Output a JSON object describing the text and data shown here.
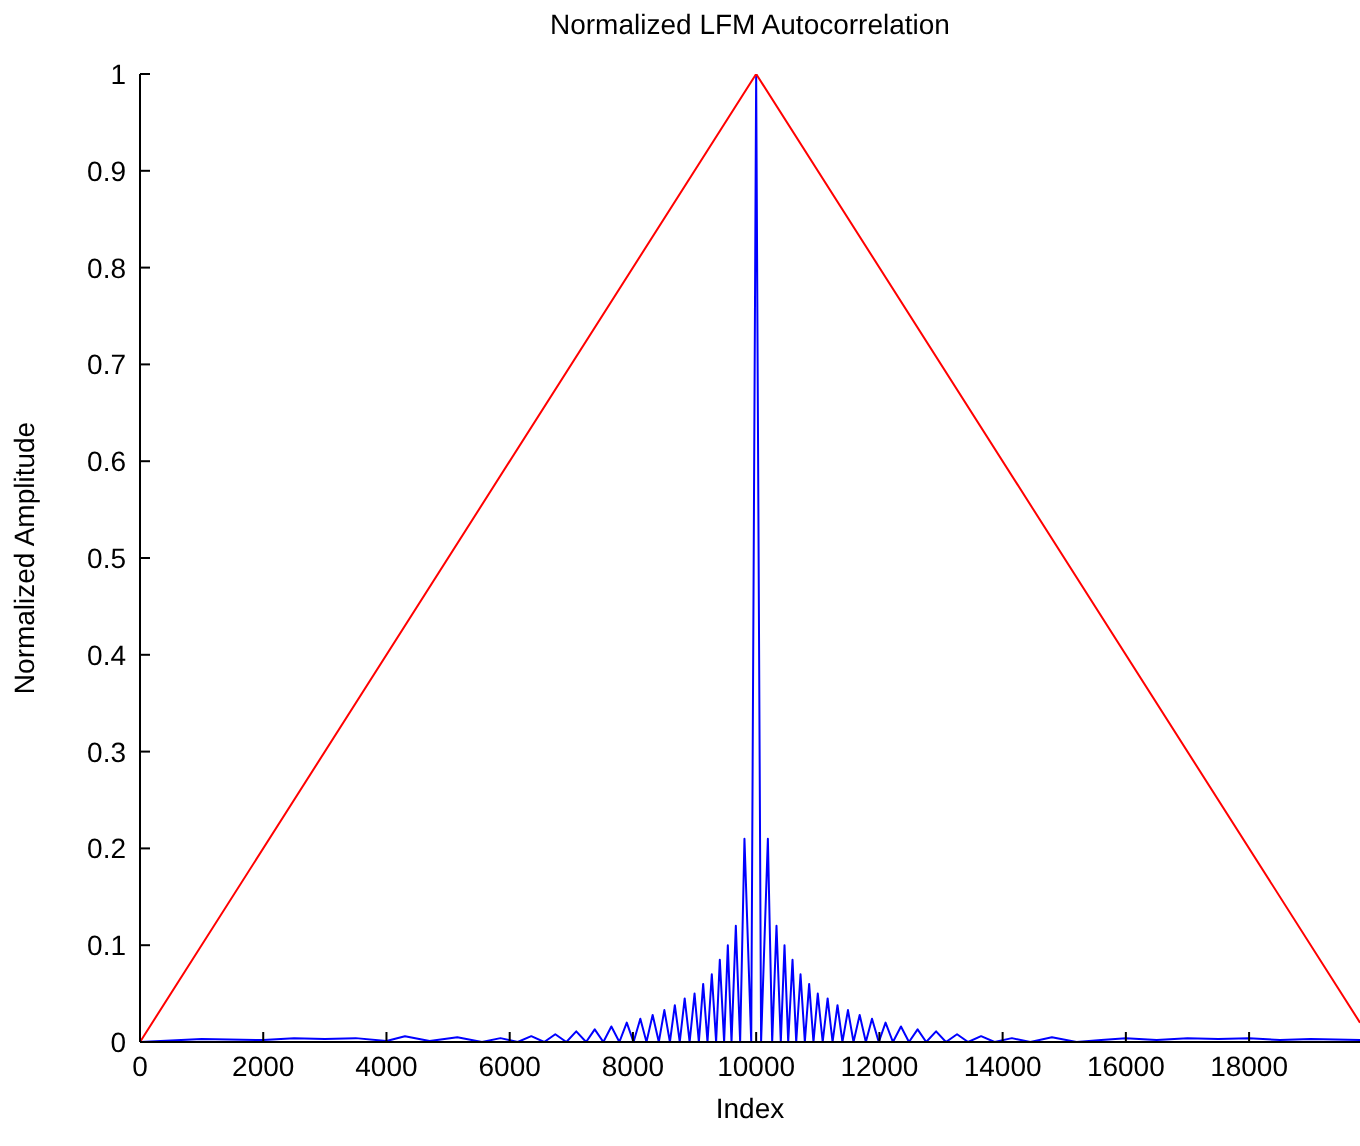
{
  "chart_data": {
    "type": "line",
    "title": "Normalized LFM Autocorrelation",
    "xlabel": "Index",
    "ylabel": "Normalized Amplitude",
    "xlim": [
      0,
      19800
    ],
    "xticks": [
      0,
      2000,
      4000,
      6000,
      8000,
      10000,
      12000,
      14000,
      16000,
      18000
    ],
    "ylim": [
      0,
      1
    ],
    "yticks": [
      0,
      0.1,
      0.2,
      0.3,
      0.4,
      0.5,
      0.6,
      0.7,
      0.8,
      0.9,
      1
    ],
    "grid": false,
    "marker": "none",
    "line_style": "solid",
    "series": [
      {
        "color": "#0000ff",
        "x": [
          0,
          1000,
          2000,
          2500,
          3000,
          3500,
          4000,
          4300,
          4700,
          5150,
          5550,
          5850,
          6130,
          6350,
          6560,
          6740,
          6920,
          7080,
          7240,
          7380,
          7520,
          7650,
          7780,
          7900,
          8010,
          8120,
          8220,
          8320,
          8420,
          8510,
          8600,
          8680,
          8760,
          8840,
          8920,
          9000,
          9070,
          9140,
          9210,
          9280,
          9350,
          9410,
          9480,
          9540,
          9600,
          9670,
          9740,
          9810,
          9920,
          10000,
          10080,
          10190,
          10260,
          10330,
          10400,
          10460,
          10520,
          10590,
          10650,
          10720,
          10790,
          10860,
          10930,
          11000,
          11080,
          11160,
          11240,
          11320,
          11400,
          11490,
          11580,
          11680,
          11780,
          11880,
          11990,
          12100,
          12220,
          12350,
          12480,
          12620,
          12760,
          12920,
          13080,
          13260,
          13440,
          13650,
          13870,
          14150,
          14450,
          14800,
          15200,
          15600,
          16000,
          16500,
          17000,
          17500,
          18000,
          18500,
          19000,
          19800
        ],
        "values": [
          0,
          0.003,
          0.002,
          0.004,
          0.003,
          0.004,
          0.001,
          0.006,
          0.001,
          0.005,
          0,
          0.004,
          0,
          0.006,
          0,
          0.008,
          0,
          0.011,
          0,
          0.013,
          0,
          0.016,
          0,
          0.02,
          0,
          0.024,
          0,
          0.028,
          0,
          0.033,
          0,
          0.038,
          0,
          0.045,
          0,
          0.05,
          0,
          0.06,
          0,
          0.07,
          0,
          0.085,
          0,
          0.1,
          0,
          0.12,
          0,
          0.21,
          0,
          1,
          0,
          0.21,
          0,
          0.12,
          0,
          0.1,
          0,
          0.085,
          0,
          0.07,
          0,
          0.06,
          0,
          0.05,
          0,
          0.045,
          0,
          0.038,
          0,
          0.033,
          0,
          0.028,
          0,
          0.024,
          0,
          0.02,
          0,
          0.016,
          0,
          0.013,
          0,
          0.011,
          0,
          0.008,
          0,
          0.006,
          0,
          0.004,
          0,
          0.005,
          0,
          0.002,
          0.004,
          0.002,
          0.004,
          0.003,
          0.004,
          0.002,
          0.003,
          0.002
        ]
      },
      {
        "color": "#ff0000",
        "x": [
          0,
          10000,
          19800
        ],
        "values": [
          0,
          1,
          0.02
        ]
      }
    ]
  }
}
